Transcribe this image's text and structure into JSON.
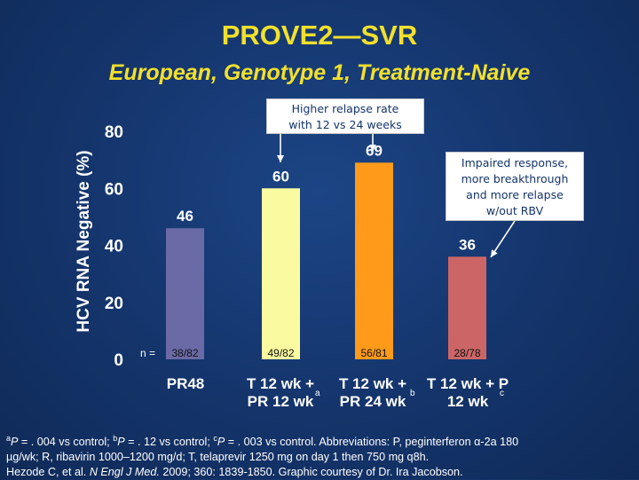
{
  "title": "PROVE2—SVR",
  "subtitle": "European, Genotype 1, Treatment-Naive",
  "chart_data": {
    "type": "bar",
    "ylabel": "HCV RNA Negative (%)",
    "ylim": [
      0,
      80
    ],
    "yticks": [
      0,
      20,
      40,
      60,
      80
    ],
    "n_prefix": "n =",
    "bars": [
      {
        "value": 46,
        "value_label": "46",
        "n": "38/82",
        "label_lines": [
          "PR48"
        ],
        "superscript": "",
        "color": "#6a6aa6"
      },
      {
        "value": 60,
        "value_label": "60",
        "n": "49/82",
        "label_lines": [
          "T 12 wk +",
          "PR 12 wk"
        ],
        "superscript": "a",
        "color": "#fafba0"
      },
      {
        "value": 69,
        "value_label": "69",
        "n": "56/81",
        "label_lines": [
          "T 12 wk +",
          "PR 24 wk"
        ],
        "superscript": "b",
        "color": "#ff9a1a"
      },
      {
        "value": 36,
        "value_label": "36",
        "n": "28/78",
        "label_lines": [
          "T 12 wk + P",
          "12 wk"
        ],
        "superscript": "c",
        "color": "#cc6666"
      }
    ]
  },
  "callouts": {
    "relapse": [
      "Higher relapse rate",
      "with 12 vs 24 weeks"
    ],
    "impaired": [
      "Impaired response,",
      "more breakthrough",
      "and more relapse",
      "w/out RBV"
    ]
  },
  "footnote": {
    "line1_parts": [
      {
        "sup": "a"
      },
      {
        "i": "P"
      },
      {
        "t": " = . 004 vs control; "
      },
      {
        "sup": "b"
      },
      {
        "i": "P"
      },
      {
        "t": " = . 12 vs control; "
      },
      {
        "sup": "c"
      },
      {
        "i": "P"
      },
      {
        "t": " = . 003 vs control. Abbreviations: P, peginterferon α-2a 180"
      }
    ],
    "line2": "µg/wk; R, ribavirin 1000–1200 mg/d; T, telaprevir 1250 mg on day 1 then 750 mg q8h.",
    "line3_parts": [
      {
        "t": "Hezode C, et al. "
      },
      {
        "i": "N Engl J Med."
      },
      {
        "t": " 2009; 360: 1839-1850. Graphic courtesy of Dr. Ira Jacobson."
      }
    ]
  }
}
